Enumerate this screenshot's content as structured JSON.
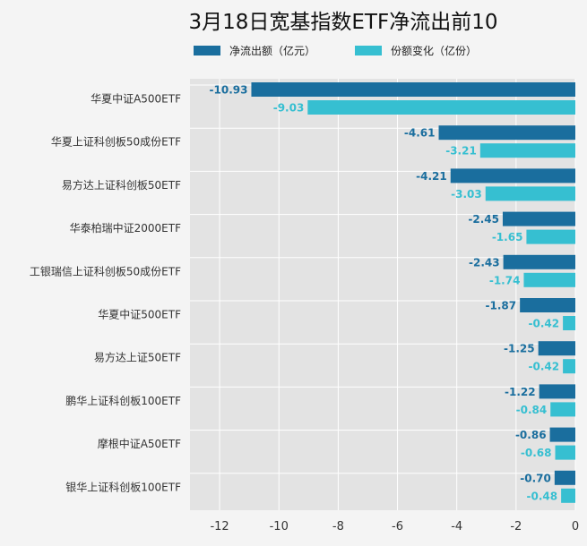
{
  "chart_data": {
    "type": "bar",
    "orientation": "horizontal",
    "title": "3月18日宽基指数ETF净流出前10",
    "categories": [
      "华夏中证A500ETF",
      "华夏上证科创板50成份ETF",
      "易方达上证科创板50ETF",
      "华泰柏瑞中证2000ETF",
      "工银瑞信上证科创板50成份ETF",
      "华夏中证500ETF",
      "易方达上证50ETF",
      "鹏华上证科创板100ETF",
      "摩根中证A50ETF",
      "银华上证科创板100ETF"
    ],
    "series": [
      {
        "name": "净流出额（亿元）",
        "color": "#1a6e9e",
        "values": [
          -10.93,
          -4.61,
          -4.21,
          -2.45,
          -2.43,
          -1.87,
          -1.25,
          -1.22,
          -0.86,
          -0.7
        ],
        "labels": [
          "-10.93",
          "-4.61",
          "-4.21",
          "-2.45",
          "-2.43",
          "-1.87",
          "-1.25",
          "-1.22",
          "-0.86",
          "-0.70"
        ]
      },
      {
        "name": "份额变化（亿份）",
        "color": "#36bfd1",
        "values": [
          -9.03,
          -3.21,
          -3.03,
          -1.65,
          -1.74,
          -0.42,
          -0.42,
          -0.84,
          -0.68,
          -0.48
        ],
        "labels": [
          "-9.03",
          "-3.21",
          "-3.03",
          "-1.65",
          "-1.74",
          "-0.42",
          "-0.42",
          "-0.84",
          "-0.68",
          "-0.48"
        ]
      }
    ],
    "xlim": [
      -13,
      0
    ],
    "x_ticks": [
      -12,
      -10,
      -8,
      -6,
      -4,
      -2,
      0
    ],
    "x_tick_labels": [
      "-12",
      "-10",
      "-8",
      "-6",
      "-4",
      "-2",
      "0"
    ],
    "xlabel": "",
    "ylabel": "",
    "grid": true,
    "legend_position": "top-center"
  }
}
